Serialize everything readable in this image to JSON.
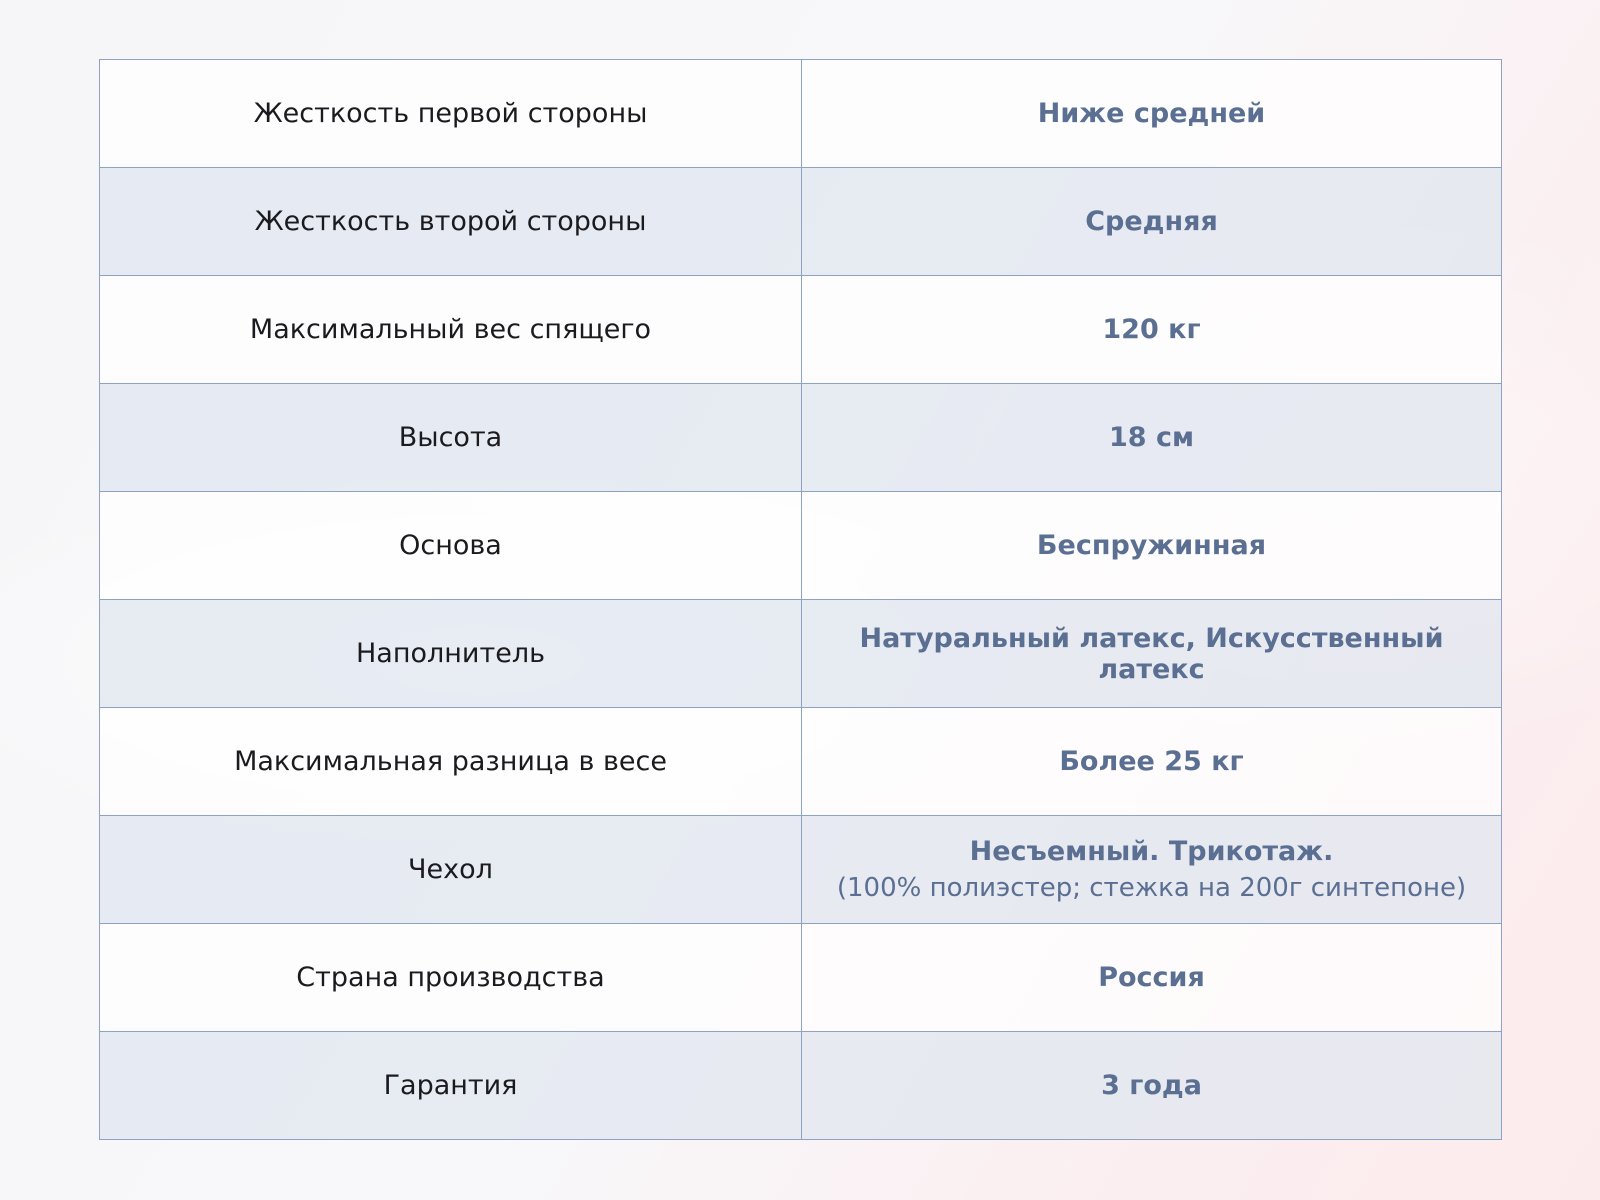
{
  "rows": [
    {
      "label": "Жесткость первой стороны",
      "value": "Ниже средней"
    },
    {
      "label": "Жесткость второй стороны",
      "value": "Средняя"
    },
    {
      "label": "Максимальный вес спящего",
      "value": "120 кг"
    },
    {
      "label": "Высота",
      "value": "18 см"
    },
    {
      "label": "Основа",
      "value": "Беспружинная"
    },
    {
      "label": "Наполнитель",
      "value": "Натуральный латекс, Искусственный латекс"
    },
    {
      "label": "Максимальная разница в весе",
      "value": "Более 25 кг"
    },
    {
      "label": "Чехол",
      "value": "Несъемный. Трикотаж.",
      "sub": "(100% полиэстер; стежка на 200г синтепоне)"
    },
    {
      "label": "Страна производства",
      "value": "Россия"
    },
    {
      "label": "Гарантия",
      "value": "3 года"
    }
  ],
  "colors": {
    "value_text": "#5a6f92",
    "border": "#8ea2c4",
    "stripe": "#e2e7f0"
  }
}
